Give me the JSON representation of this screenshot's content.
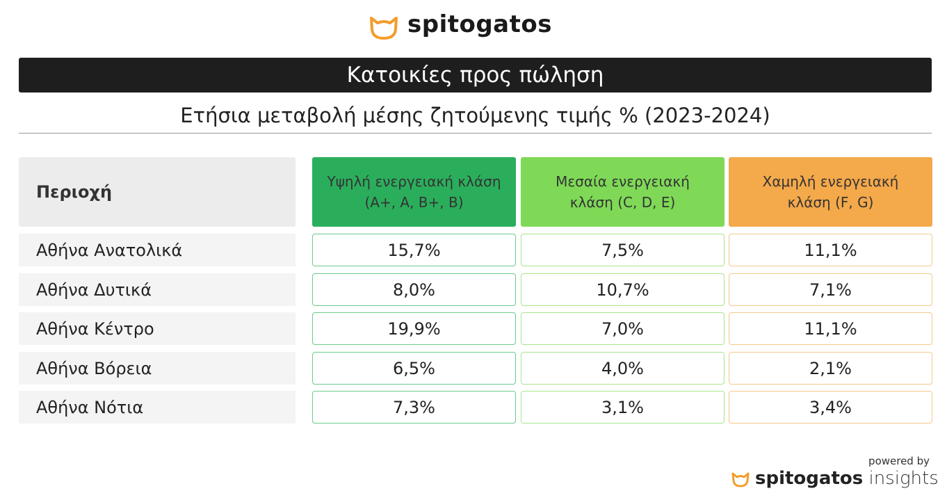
{
  "header": {
    "brand": "spitogatos",
    "title": "Κατοικίες προς πώληση",
    "subtitle": "Ετήσια μεταβολή μέσης ζητούμενης τιμής % (2023-2024)"
  },
  "table": {
    "columns": [
      "Περιοχή",
      "Υψηλή ενεργειακή κλάση (A+, A, B+, B)",
      "Μεσαία ενεργειακή κλάση (C, D, E)",
      "Χαμηλή ενεργειακή κλάση (F, G)"
    ],
    "rows": [
      [
        "Αθήνα Ανατολικά",
        "15,7%",
        "7,5%",
        "11,1%"
      ],
      [
        "Αθήνα Δυτικά",
        "8,0%",
        "10,7%",
        "7,1%"
      ],
      [
        "Αθήνα Κέντρο",
        "19,9%",
        "7,0%",
        "11,1%"
      ],
      [
        "Αθήνα Βόρεια",
        "6,5%",
        "4,0%",
        "2,1%"
      ],
      [
        "Αθήνα Νότια",
        "7,3%",
        "3,1%",
        "3,4%"
      ]
    ]
  },
  "footer": {
    "powered_by": "powered by",
    "brand": "spitogatos",
    "product": "insights"
  }
}
